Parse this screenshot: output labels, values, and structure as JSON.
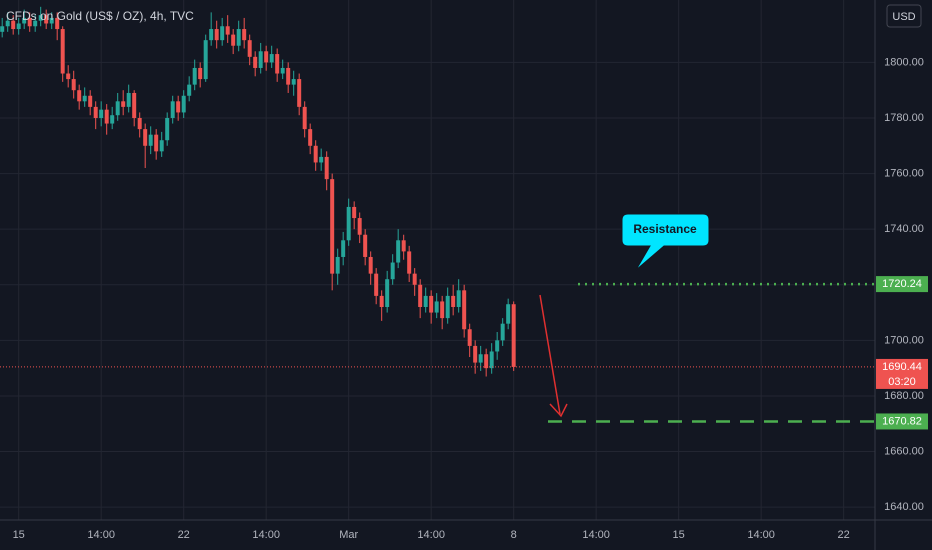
{
  "chart_data": {
    "type": "candlestick",
    "title": "CFDs on Gold (US$ / OZ), 4h, TVC",
    "currency": "USD",
    "up_color": "#26a69a",
    "down_color": "#ef5350",
    "grid": true,
    "ylim": [
      1822.45,
      1635.37
    ],
    "yticks": [
      {
        "value": 1640,
        "label": "1640.00"
      },
      {
        "value": 1660,
        "label": "1660.00"
      },
      {
        "value": 1680,
        "label": "1680.00"
      },
      {
        "value": 1700,
        "label": "1700.00"
      },
      {
        "value": 1720,
        "label": "1720.00"
      },
      {
        "value": 1740,
        "label": "1740.00"
      },
      {
        "value": 1760,
        "label": "1760.00"
      },
      {
        "value": 1780,
        "label": "1780.00"
      },
      {
        "value": 1800,
        "label": "1800.00"
      }
    ],
    "xlim": [
      -0.4,
      158.7
    ],
    "xticks": [
      {
        "value": 3,
        "label": "15"
      },
      {
        "value": 18,
        "label": "14:00"
      },
      {
        "value": 33,
        "label": "22"
      },
      {
        "value": 48,
        "label": "14:00"
      },
      {
        "value": 63,
        "label": "Mar"
      },
      {
        "value": 78,
        "label": "14:00"
      },
      {
        "value": 93,
        "label": "8"
      },
      {
        "value": 108,
        "label": "14:00"
      },
      {
        "value": 123,
        "label": "15"
      },
      {
        "value": 138,
        "label": "14:00"
      },
      {
        "value": 153,
        "label": "22"
      }
    ],
    "open": [
      1811,
      1813,
      1815,
      1812,
      1814,
      1816,
      1813,
      1815,
      1817,
      1814,
      1816,
      1812,
      1796,
      1794,
      1790,
      1786,
      1788,
      1784,
      1780,
      1783,
      1778,
      1781,
      1786,
      1784,
      1789,
      1780,
      1776,
      1770,
      1774,
      1768,
      1772,
      1780,
      1786,
      1782,
      1788,
      1792,
      1798,
      1794,
      1808,
      1812,
      1808,
      1813,
      1810,
      1806,
      1812,
      1808,
      1802,
      1798,
      1804,
      1800,
      1803,
      1796,
      1798,
      1792,
      1794,
      1784,
      1776,
      1770,
      1764,
      1766,
      1758,
      1724,
      1730,
      1736,
      1748,
      1744,
      1738,
      1730,
      1724,
      1716,
      1712,
      1722,
      1728,
      1736,
      1732,
      1724,
      1720,
      1712,
      1716,
      1710,
      1714,
      1708,
      1716,
      1712,
      1718,
      1704,
      1698,
      1692,
      1695,
      1690,
      1696,
      1700,
      1706,
      1713
    ],
    "high": [
      1816,
      1818,
      1817,
      1816,
      1819,
      1818,
      1817,
      1820,
      1819,
      1818,
      1818,
      1813,
      1799,
      1797,
      1792,
      1791,
      1790,
      1786,
      1786,
      1785,
      1784,
      1789,
      1790,
      1792,
      1790,
      1782,
      1778,
      1777,
      1776,
      1775,
      1782,
      1788,
      1788,
      1790,
      1795,
      1801,
      1800,
      1810,
      1818,
      1815,
      1816,
      1817,
      1812,
      1815,
      1816,
      1810,
      1804,
      1807,
      1806,
      1806,
      1805,
      1801,
      1800,
      1797,
      1796,
      1786,
      1778,
      1772,
      1769,
      1768,
      1760,
      1733,
      1739,
      1751,
      1750,
      1746,
      1740,
      1732,
      1726,
      1718,
      1725,
      1731,
      1740,
      1738,
      1734,
      1726,
      1722,
      1719,
      1718,
      1717,
      1716,
      1719,
      1720,
      1722,
      1720,
      1706,
      1700,
      1698,
      1697,
      1699,
      1703,
      1708,
      1715,
      1714
    ],
    "low": [
      1809,
      1811,
      1810,
      1810,
      1812,
      1811,
      1811,
      1813,
      1812,
      1812,
      1808,
      1793,
      1791,
      1787,
      1783,
      1784,
      1781,
      1776,
      1777,
      1774,
      1776,
      1779,
      1781,
      1782,
      1777,
      1773,
      1762,
      1767,
      1765,
      1766,
      1770,
      1778,
      1779,
      1780,
      1786,
      1790,
      1791,
      1793,
      1806,
      1805,
      1806,
      1807,
      1803,
      1804,
      1805,
      1799,
      1795,
      1796,
      1797,
      1798,
      1793,
      1794,
      1789,
      1788,
      1781,
      1773,
      1767,
      1761,
      1761,
      1754,
      1718,
      1720,
      1727,
      1734,
      1740,
      1735,
      1727,
      1720,
      1713,
      1707,
      1710,
      1720,
      1726,
      1729,
      1721,
      1716,
      1708,
      1710,
      1706,
      1708,
      1704,
      1706,
      1709,
      1710,
      1701,
      1694,
      1688,
      1689,
      1687,
      1688,
      1693,
      1698,
      1704,
      1689
    ],
    "close": [
      1813,
      1815,
      1812,
      1814,
      1816,
      1813,
      1815,
      1817,
      1814,
      1816,
      1812,
      1796,
      1794,
      1790,
      1786,
      1788,
      1784,
      1780,
      1783,
      1778,
      1781,
      1786,
      1784,
      1789,
      1780,
      1776,
      1770,
      1774,
      1768,
      1772,
      1780,
      1786,
      1782,
      1788,
      1792,
      1798,
      1794,
      1808,
      1812,
      1808,
      1813,
      1810,
      1806,
      1812,
      1808,
      1802,
      1798,
      1804,
      1800,
      1803,
      1796,
      1798,
      1792,
      1794,
      1784,
      1776,
      1770,
      1764,
      1766,
      1758,
      1724,
      1730,
      1736,
      1748,
      1744,
      1738,
      1730,
      1724,
      1716,
      1712,
      1722,
      1728,
      1736,
      1732,
      1724,
      1720,
      1712,
      1716,
      1710,
      1714,
      1708,
      1716,
      1712,
      1718,
      1704,
      1698,
      1692,
      1695,
      1690,
      1696,
      1700,
      1706,
      1713,
      1690.44
    ],
    "price_lines": [
      {
        "value": 1720.24,
        "color": "#4caf50",
        "style": "dotted"
      },
      {
        "value": 1690.44,
        "color": "#ef5350",
        "style": "last"
      },
      {
        "value": 1670.82,
        "color": "#4caf50",
        "style": "dashed"
      }
    ],
    "countdown": "03:20",
    "annotation": "Resistance"
  }
}
